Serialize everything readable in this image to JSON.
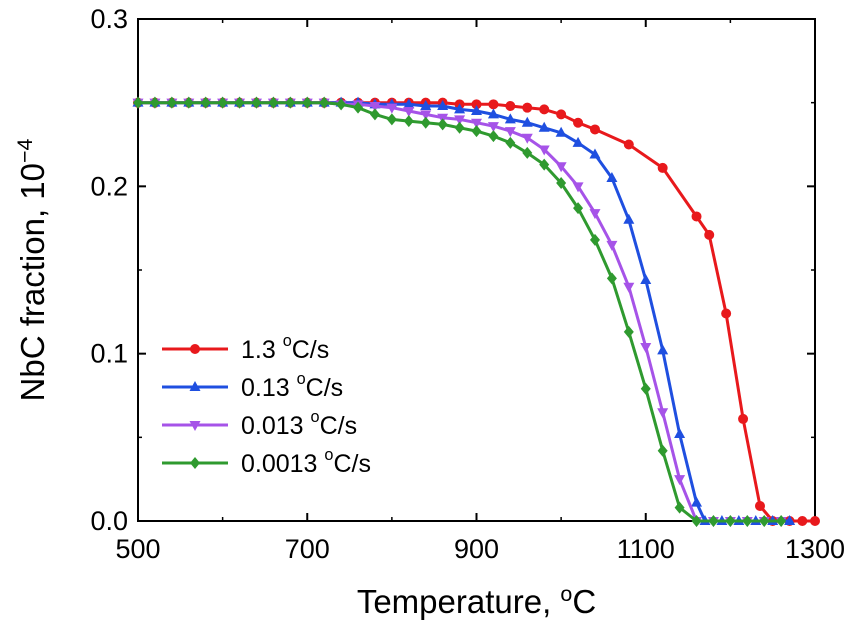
{
  "chart_data": {
    "type": "line",
    "title": "",
    "xlabel": {
      "base": "Temperature, ",
      "sup": "o",
      "unit": "C"
    },
    "ylabel": {
      "base": "NbC fraction, 10",
      "sup": "−4"
    },
    "xlim": [
      500,
      1300
    ],
    "ylim": [
      0,
      0.3
    ],
    "xticks": [
      "500",
      "700",
      "900",
      "1100",
      "1300"
    ],
    "yticks": [
      "0.0",
      "0.1",
      "0.2",
      "0.3"
    ],
    "legend_position": "bottom-left",
    "grid": false,
    "series": [
      {
        "name": {
          "base": "1.3 ",
          "sup": "o",
          "unit": "C/s"
        },
        "color": "#e8191c",
        "marker": "circle",
        "points": [
          [
            500,
            0.25
          ],
          [
            520,
            0.25
          ],
          [
            540,
            0.25
          ],
          [
            560,
            0.25
          ],
          [
            580,
            0.25
          ],
          [
            600,
            0.25
          ],
          [
            620,
            0.25
          ],
          [
            640,
            0.25
          ],
          [
            660,
            0.25
          ],
          [
            680,
            0.25
          ],
          [
            700,
            0.25
          ],
          [
            720,
            0.25
          ],
          [
            740,
            0.25
          ],
          [
            760,
            0.25
          ],
          [
            780,
            0.25
          ],
          [
            800,
            0.25
          ],
          [
            820,
            0.25
          ],
          [
            840,
            0.25
          ],
          [
            860,
            0.25
          ],
          [
            880,
            0.249
          ],
          [
            900,
            0.249
          ],
          [
            920,
            0.249
          ],
          [
            940,
            0.248
          ],
          [
            960,
            0.247
          ],
          [
            980,
            0.246
          ],
          [
            1000,
            0.243
          ],
          [
            1020,
            0.238
          ],
          [
            1040,
            0.234
          ],
          [
            1080,
            0.225
          ],
          [
            1120,
            0.211
          ],
          [
            1160,
            0.182
          ],
          [
            1175,
            0.171
          ],
          [
            1195,
            0.124
          ],
          [
            1215,
            0.061
          ],
          [
            1235,
            0.009
          ],
          [
            1250,
            0.0
          ],
          [
            1270,
            0.0
          ],
          [
            1285,
            0.0
          ],
          [
            1300,
            0.0
          ]
        ]
      },
      {
        "name": {
          "base": "0.13 ",
          "sup": "o",
          "unit": "C/s"
        },
        "color": "#1f4fe0",
        "marker": "triangle-up",
        "points": [
          [
            500,
            0.25
          ],
          [
            520,
            0.25
          ],
          [
            540,
            0.25
          ],
          [
            560,
            0.25
          ],
          [
            580,
            0.25
          ],
          [
            600,
            0.25
          ],
          [
            620,
            0.25
          ],
          [
            640,
            0.25
          ],
          [
            660,
            0.25
          ],
          [
            680,
            0.25
          ],
          [
            700,
            0.25
          ],
          [
            720,
            0.25
          ],
          [
            740,
            0.25
          ],
          [
            760,
            0.25
          ],
          [
            780,
            0.249
          ],
          [
            800,
            0.249
          ],
          [
            820,
            0.249
          ],
          [
            840,
            0.248
          ],
          [
            860,
            0.248
          ],
          [
            880,
            0.246
          ],
          [
            900,
            0.245
          ],
          [
            920,
            0.243
          ],
          [
            940,
            0.24
          ],
          [
            960,
            0.238
          ],
          [
            980,
            0.235
          ],
          [
            1000,
            0.232
          ],
          [
            1020,
            0.226
          ],
          [
            1040,
            0.219
          ],
          [
            1060,
            0.205
          ],
          [
            1080,
            0.18
          ],
          [
            1100,
            0.144
          ],
          [
            1120,
            0.102
          ],
          [
            1140,
            0.052
          ],
          [
            1160,
            0.011
          ],
          [
            1170,
            0.0
          ],
          [
            1190,
            0.0
          ],
          [
            1210,
            0.0
          ],
          [
            1230,
            0.0
          ],
          [
            1250,
            0.0
          ],
          [
            1270,
            0.0
          ]
        ]
      },
      {
        "name": {
          "base": "0.013 ",
          "sup": "o",
          "unit": "C/s"
        },
        "color": "#a653e8",
        "marker": "triangle-down",
        "points": [
          [
            500,
            0.25
          ],
          [
            520,
            0.25
          ],
          [
            540,
            0.25
          ],
          [
            560,
            0.25
          ],
          [
            580,
            0.25
          ],
          [
            600,
            0.25
          ],
          [
            620,
            0.25
          ],
          [
            640,
            0.25
          ],
          [
            660,
            0.25
          ],
          [
            680,
            0.25
          ],
          [
            700,
            0.25
          ],
          [
            720,
            0.25
          ],
          [
            740,
            0.249
          ],
          [
            760,
            0.249
          ],
          [
            780,
            0.248
          ],
          [
            800,
            0.247
          ],
          [
            820,
            0.245
          ],
          [
            840,
            0.243
          ],
          [
            860,
            0.241
          ],
          [
            880,
            0.24
          ],
          [
            900,
            0.238
          ],
          [
            920,
            0.236
          ],
          [
            940,
            0.233
          ],
          [
            960,
            0.229
          ],
          [
            980,
            0.222
          ],
          [
            1000,
            0.212
          ],
          [
            1020,
            0.2
          ],
          [
            1040,
            0.184
          ],
          [
            1060,
            0.165
          ],
          [
            1080,
            0.14
          ],
          [
            1100,
            0.104
          ],
          [
            1120,
            0.065
          ],
          [
            1140,
            0.025
          ],
          [
            1160,
            0.0
          ],
          [
            1180,
            0.0
          ],
          [
            1200,
            0.0
          ],
          [
            1220,
            0.0
          ],
          [
            1240,
            0.0
          ],
          [
            1260,
            0.0
          ]
        ]
      },
      {
        "name": {
          "base": "0.0013 ",
          "sup": "o",
          "unit": "C/s"
        },
        "color": "#2f9a2f",
        "marker": "diamond",
        "points": [
          [
            500,
            0.25
          ],
          [
            520,
            0.25
          ],
          [
            540,
            0.25
          ],
          [
            560,
            0.25
          ],
          [
            580,
            0.25
          ],
          [
            600,
            0.25
          ],
          [
            620,
            0.25
          ],
          [
            640,
            0.25
          ],
          [
            660,
            0.25
          ],
          [
            680,
            0.25
          ],
          [
            700,
            0.25
          ],
          [
            720,
            0.25
          ],
          [
            740,
            0.249
          ],
          [
            760,
            0.247
          ],
          [
            780,
            0.243
          ],
          [
            800,
            0.24
          ],
          [
            820,
            0.239
          ],
          [
            840,
            0.238
          ],
          [
            860,
            0.237
          ],
          [
            880,
            0.235
          ],
          [
            900,
            0.233
          ],
          [
            920,
            0.23
          ],
          [
            940,
            0.226
          ],
          [
            960,
            0.22
          ],
          [
            980,
            0.213
          ],
          [
            1000,
            0.202
          ],
          [
            1020,
            0.187
          ],
          [
            1040,
            0.168
          ],
          [
            1060,
            0.145
          ],
          [
            1080,
            0.113
          ],
          [
            1100,
            0.079
          ],
          [
            1120,
            0.042
          ],
          [
            1140,
            0.008
          ],
          [
            1160,
            0.0
          ],
          [
            1180,
            0.0
          ],
          [
            1200,
            0.0
          ],
          [
            1220,
            0.0
          ],
          [
            1240,
            0.0
          ],
          [
            1260,
            0.0
          ]
        ]
      }
    ]
  }
}
